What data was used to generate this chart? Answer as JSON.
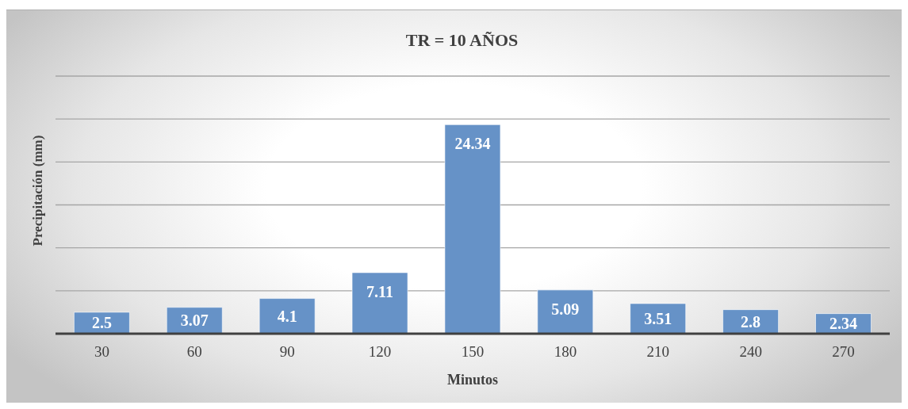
{
  "chart_data": {
    "type": "bar",
    "title": "TR = 10 AÑOS",
    "xlabel": "Minutos",
    "ylabel": "Precipitación (mm)",
    "categories": [
      "30",
      "60",
      "90",
      "120",
      "150",
      "180",
      "210",
      "240",
      "270"
    ],
    "values": [
      2.5,
      3.07,
      4.1,
      7.11,
      24.34,
      5.09,
      3.51,
      2.8,
      2.34
    ],
    "color": "#6692c7",
    "ylim": [
      0,
      30
    ],
    "yticks": [
      {
        "value": 0,
        "label": null
      },
      {
        "value": 5,
        "label": null
      },
      {
        "value": 10,
        "label": null
      },
      {
        "value": 15,
        "label": null
      },
      {
        "value": 20,
        "label": null
      },
      {
        "value": 25,
        "label": null
      },
      {
        "value": 30,
        "label": null
      }
    ],
    "grid": "y",
    "tick_labels": "x",
    "data_labels": true
  }
}
